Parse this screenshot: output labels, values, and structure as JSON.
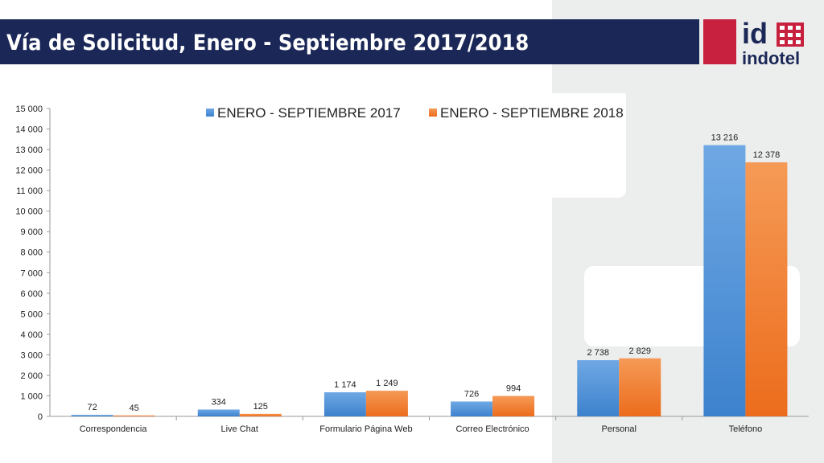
{
  "slide": {
    "title": "Vía de Solicitud, Enero - Septiembre 2017/2018",
    "logo_text_top": "id",
    "logo_text_bottom": "indotel"
  },
  "colors": {
    "title_bar": "#1b2857",
    "accent_red": "#c8203f",
    "series_2017": "#4a8fd6",
    "series_2018": "#f17c2f",
    "right_panel": "#eceded"
  },
  "chart_data": {
    "type": "bar",
    "categories": [
      "Correspondencia",
      "Live Chat",
      "Formulario Página Web",
      "Correo Electrónico",
      "Personal",
      "Teléfono"
    ],
    "series": [
      {
        "name": "ENERO - SEPTIEMBRE 2017",
        "values": [
          72,
          334,
          1174,
          726,
          2738,
          13216
        ],
        "labels": [
          "72",
          "334",
          "1 174",
          "726",
          "2 738",
          "13 216"
        ]
      },
      {
        "name": "ENERO - SEPTIEMBRE 2018",
        "values": [
          45,
          125,
          1249,
          994,
          2829,
          12378
        ],
        "labels": [
          "45",
          "125",
          "1 249",
          "994",
          "2 829",
          "12 378"
        ]
      }
    ],
    "y_ticks": [
      "0",
      "1 000",
      "2 000",
      "3 000",
      "4 000",
      "5 000",
      "6 000",
      "7 000",
      "8 000",
      "9 000",
      "10 000",
      "11 000",
      "12 000",
      "13 000",
      "14 000",
      "15 000"
    ],
    "ylim": [
      0,
      15000
    ],
    "legend_position": "top",
    "grid": false
  }
}
